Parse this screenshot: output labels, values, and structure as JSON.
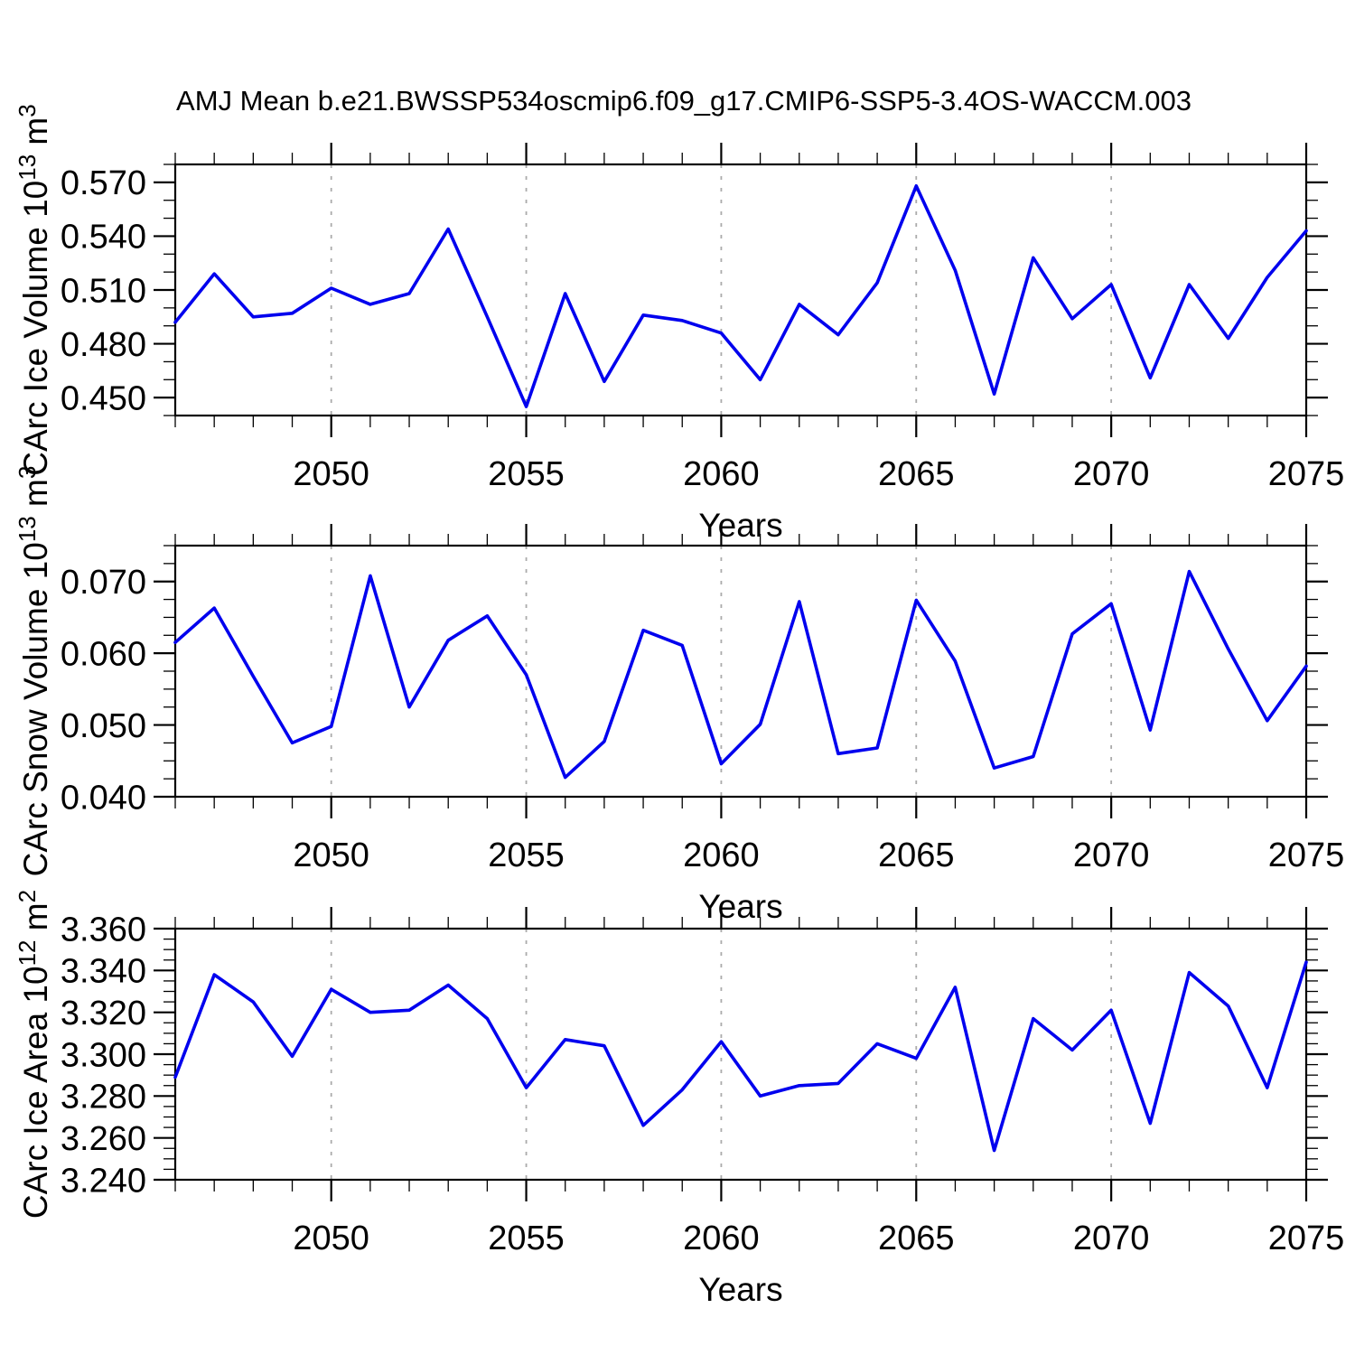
{
  "title": "AMJ Mean b.e21.BWSSP534oscmip6.f09_g17.CMIP6-SSP5-3.4OS-WACCM.003",
  "style": {
    "line_color": "#0000EE",
    "grid_color": "#ABABAB",
    "axis_color": "#000000",
    "background": "#FFFFFF"
  },
  "chart_data": [
    {
      "type": "line",
      "name": "ice-volume",
      "title": "",
      "xlabel": "Years",
      "ylabel": "CArc Ice Volume 10^13 m^3",
      "ylabel_rich": {
        "base": "CArc Ice Volume 10",
        "exp": "13",
        "unit": " m",
        "unit_exp": "3"
      },
      "x": [
        2046,
        2047,
        2048,
        2049,
        2050,
        2051,
        2052,
        2053,
        2054,
        2055,
        2056,
        2057,
        2058,
        2059,
        2060,
        2061,
        2062,
        2063,
        2064,
        2065,
        2066,
        2067,
        2068,
        2069,
        2070,
        2071,
        2072,
        2073,
        2074,
        2075
      ],
      "values": [
        0.492,
        0.519,
        0.495,
        0.497,
        0.511,
        0.502,
        0.508,
        0.544,
        0.495,
        0.445,
        0.508,
        0.459,
        0.496,
        0.493,
        0.486,
        0.46,
        0.502,
        0.485,
        0.514,
        0.568,
        0.521,
        0.452,
        0.528,
        0.494,
        0.513,
        0.461,
        0.513,
        0.483,
        0.517,
        0.543
      ],
      "xlim": [
        2046,
        2075
      ],
      "ylim": [
        0.44,
        0.58
      ],
      "yticks_major": [
        0.45,
        0.48,
        0.51,
        0.54,
        0.57
      ],
      "ytick_minor_step": 0.01,
      "xticks_major": [
        2050,
        2055,
        2060,
        2065,
        2070,
        2075
      ],
      "xtick_minor_step": 1,
      "grid_x": [
        2050,
        2055,
        2060,
        2065,
        2070
      ],
      "tick_label_decimals": 3,
      "legend": "none",
      "grid": "vertical-dashed"
    },
    {
      "type": "line",
      "name": "snow-volume",
      "title": "",
      "xlabel": "Years",
      "ylabel": "CArc Snow Volume 10^13 m^3",
      "ylabel_rich": {
        "base": "CArc Snow Volume 10",
        "exp": "13",
        "unit": " m",
        "unit_exp": "3"
      },
      "x": [
        2046,
        2047,
        2048,
        2049,
        2050,
        2051,
        2052,
        2053,
        2054,
        2055,
        2056,
        2057,
        2058,
        2059,
        2060,
        2061,
        2062,
        2063,
        2064,
        2065,
        2066,
        2067,
        2068,
        2069,
        2070,
        2071,
        2072,
        2073,
        2074,
        2075
      ],
      "values": [
        0.0615,
        0.0663,
        0.0568,
        0.0475,
        0.0498,
        0.0708,
        0.0525,
        0.0618,
        0.0652,
        0.057,
        0.0427,
        0.0477,
        0.0632,
        0.0611,
        0.0446,
        0.0501,
        0.0672,
        0.046,
        0.0468,
        0.0674,
        0.0589,
        0.044,
        0.0456,
        0.0627,
        0.0669,
        0.0493,
        0.0714,
        0.0606,
        0.0506,
        0.0582
      ],
      "xlim": [
        2046,
        2075
      ],
      "ylim": [
        0.04,
        0.075
      ],
      "yticks_major": [
        0.04,
        0.05,
        0.06,
        0.07
      ],
      "ytick_minor_step": 0.0025,
      "xticks_major": [
        2050,
        2055,
        2060,
        2065,
        2070,
        2075
      ],
      "xtick_minor_step": 1,
      "grid_x": [
        2050,
        2055,
        2060,
        2065,
        2070
      ],
      "tick_label_decimals": 3,
      "legend": "none",
      "grid": "vertical-dashed"
    },
    {
      "type": "line",
      "name": "ice-area",
      "title": "",
      "xlabel": "Years",
      "ylabel": "CArc Ice Area 10^12 m^2",
      "ylabel_rich": {
        "base": "CArc Ice Area 10",
        "exp": "12",
        "unit": " m",
        "unit_exp": "2"
      },
      "x": [
        2046,
        2047,
        2048,
        2049,
        2050,
        2051,
        2052,
        2053,
        2054,
        2055,
        2056,
        2057,
        2058,
        2059,
        2060,
        2061,
        2062,
        2063,
        2064,
        2065,
        2066,
        2067,
        2068,
        2069,
        2070,
        2071,
        2072,
        2073,
        2074,
        2075
      ],
      "values": [
        3.289,
        3.338,
        3.325,
        3.299,
        3.331,
        3.32,
        3.321,
        3.333,
        3.317,
        3.284,
        3.307,
        3.304,
        3.266,
        3.283,
        3.306,
        3.28,
        3.285,
        3.286,
        3.305,
        3.298,
        3.332,
        3.254,
        3.317,
        3.302,
        3.321,
        3.267,
        3.339,
        3.323,
        3.284,
        3.344
      ],
      "xlim": [
        2046,
        2075
      ],
      "ylim": [
        3.24,
        3.36
      ],
      "yticks_major": [
        3.24,
        3.26,
        3.28,
        3.3,
        3.32,
        3.34,
        3.36
      ],
      "ytick_minor_step": 0.005,
      "xticks_major": [
        2050,
        2055,
        2060,
        2065,
        2070,
        2075
      ],
      "xtick_minor_step": 1,
      "grid_x": [
        2050,
        2055,
        2060,
        2065,
        2070
      ],
      "tick_label_decimals": 3,
      "legend": "none",
      "grid": "vertical-dashed"
    }
  ]
}
